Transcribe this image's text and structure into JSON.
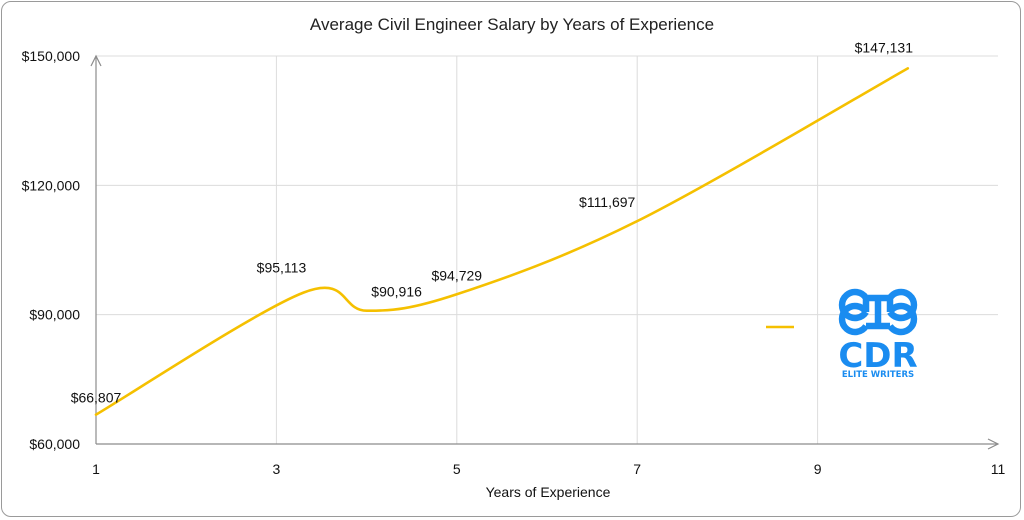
{
  "chart_data": {
    "type": "line",
    "title": "Average Civil Engineer Salary by Years of Experience",
    "xlabel": "Years of Experience",
    "ylabel": "",
    "xlim": [
      1,
      11
    ],
    "ylim": [
      60000,
      150000
    ],
    "x_ticks": [
      "1",
      "3",
      "5",
      "7",
      "9",
      "11"
    ],
    "y_ticks": [
      "$60,000",
      "$90,000",
      "$120,000",
      "$150,000"
    ],
    "grid": true,
    "smooth": true,
    "series": [
      {
        "color": "#F5C000",
        "points": [
          {
            "x": 1,
            "y": 66807,
            "label": "$66,807"
          },
          {
            "x": 3.3,
            "y": 95113,
            "label": "$95,113"
          },
          {
            "x": 4,
            "y": 90916,
            "label": "$90,916"
          },
          {
            "x": 5,
            "y": 94729,
            "label": "$94,729"
          },
          {
            "x": 7,
            "y": 111697,
            "label": "$111,697"
          },
          {
            "x": 10,
            "y": 147131,
            "label": "$147,131"
          }
        ]
      }
    ]
  },
  "logo": {
    "text": "CDR",
    "subtext": "ELITE WRITERS",
    "color": "#1A8CF0"
  }
}
